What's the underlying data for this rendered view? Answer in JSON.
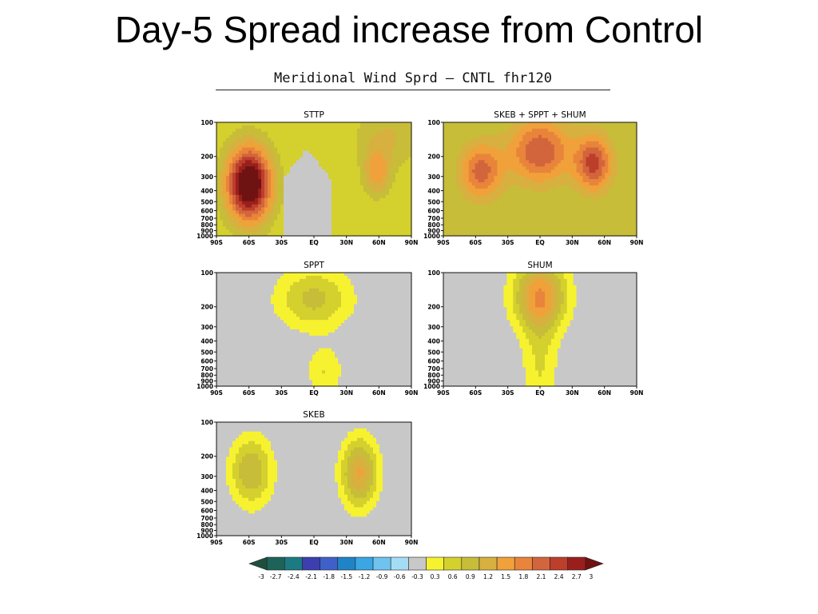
{
  "slide": {
    "title": "Day-5 Spread increase from Control"
  },
  "figure": {
    "title": "Meridional Wind Sprd — CNTL   fhr120"
  },
  "colors": {
    "levels": [
      "#1e4f3e",
      "#1d6359",
      "#1c7a82",
      "#3d3fb0",
      "#3f60c8",
      "#1f84c6",
      "#3aa6e3",
      "#6fc3ef",
      "#a5dcf5",
      "#c8c8c8",
      "#f7f230",
      "#d4d02e",
      "#c7bd39",
      "#d8b040",
      "#f0a13a",
      "#e8843b",
      "#d2653c",
      "#bd3e2b",
      "#9a1f1c",
      "#6f1212"
    ]
  },
  "chart_data": [
    {
      "type": "heatmap",
      "title": "STTP",
      "x_ticks": [
        "90S",
        "60S",
        "30S",
        "EQ",
        "30N",
        "60N",
        "90N"
      ],
      "y_ticks": [
        100,
        200,
        300,
        400,
        500,
        600,
        700,
        800,
        900,
        1000
      ],
      "y_scale": "log-pressure",
      "field": "meridional wind spread increase",
      "features": [
        {
          "lat": -60,
          "p": 350,
          "peak": 3.0,
          "dlat": 15,
          "dp": 0.55
        },
        {
          "lat": 58,
          "p": 280,
          "peak": 1.0,
          "dlat": 9,
          "dp": 0.35
        },
        {
          "lat": 70,
          "p": 130,
          "peak": 0.6,
          "dlat": 25,
          "dp": 0.5
        }
      ],
      "background": 0.6,
      "neutral_region": {
        "lat_min": -28,
        "lat_max": 15,
        "p_top": 170
      }
    },
    {
      "type": "heatmap",
      "title": "SKEB + SPPT + SHUM",
      "x_ticks": [
        "90S",
        "60S",
        "30S",
        "EQ",
        "30N",
        "60N",
        "90N"
      ],
      "y_ticks": [
        100,
        200,
        300,
        400,
        500,
        600,
        700,
        800,
        900,
        1000
      ],
      "y_scale": "log-pressure",
      "field": "meridional wind spread increase",
      "features": [
        {
          "lat": -55,
          "p": 270,
          "peak": 1.35,
          "dlat": 14,
          "dp": 0.4
        },
        {
          "lat": 0,
          "p": 180,
          "peak": 1.5,
          "dlat": 20,
          "dp": 0.45
        },
        {
          "lat": 50,
          "p": 230,
          "peak": 1.6,
          "dlat": 12,
          "dp": 0.4
        }
      ],
      "background": 0.9,
      "neutral_region": null
    },
    {
      "type": "heatmap",
      "title": "SPPT",
      "x_ticks": [
        "90S",
        "60S",
        "30S",
        "EQ",
        "30N",
        "60N",
        "90N"
      ],
      "y_ticks": [
        100,
        200,
        300,
        400,
        500,
        600,
        700,
        800,
        900,
        1000
      ],
      "y_scale": "log-pressure",
      "field": "meridional wind spread increase",
      "features": [
        {
          "lat": 0,
          "p": 170,
          "peak": 1.0,
          "dlat": 25,
          "dp": 0.45
        },
        {
          "lat": 10,
          "p": 750,
          "peak": 0.6,
          "dlat": 12,
          "dp": 0.35
        }
      ],
      "background": 0.0,
      "neutral_region": null
    },
    {
      "type": "heatmap",
      "title": "SHUM",
      "x_ticks": [
        "90S",
        "60S",
        "30S",
        "EQ",
        "30N",
        "60N",
        "90N"
      ],
      "y_ticks": [
        100,
        200,
        300,
        400,
        500,
        600,
        700,
        800,
        900,
        1000
      ],
      "y_scale": "log-pressure",
      "field": "meridional wind spread increase",
      "features": [
        {
          "lat": 0,
          "p": 160,
          "peak": 1.7,
          "dlat": 18,
          "dp": 0.5
        },
        {
          "lat": 0,
          "p": 700,
          "peak": 0.6,
          "dlat": 12,
          "dp": 1.0
        }
      ],
      "background": 0.0,
      "neutral_region": null
    },
    {
      "type": "heatmap",
      "title": "SKEB",
      "x_ticks": [
        "90S",
        "60S",
        "30S",
        "EQ",
        "30N",
        "60N",
        "90N"
      ],
      "y_ticks": [
        100,
        200,
        300,
        400,
        500,
        600,
        700,
        800,
        900,
        1000
      ],
      "y_scale": "log-pressure",
      "field": "meridional wind spread increase",
      "features": [
        {
          "lat": -58,
          "p": 270,
          "peak": 1.2,
          "dlat": 14,
          "dp": 0.5
        },
        {
          "lat": 42,
          "p": 280,
          "peak": 1.55,
          "dlat": 12,
          "dp": 0.5
        }
      ],
      "background": 0.0,
      "neutral_region": null
    }
  ],
  "colorbar": {
    "labels": [
      "-3",
      "-2.7",
      "-2.4",
      "-2.1",
      "-1.8",
      "-1.5",
      "-1.2",
      "-0.9",
      "-0.6",
      "-0.3",
      "0.3",
      "0.6",
      "0.9",
      "1.2",
      "1.5",
      "1.8",
      "2.1",
      "2.4",
      "2.7",
      "3"
    ]
  }
}
